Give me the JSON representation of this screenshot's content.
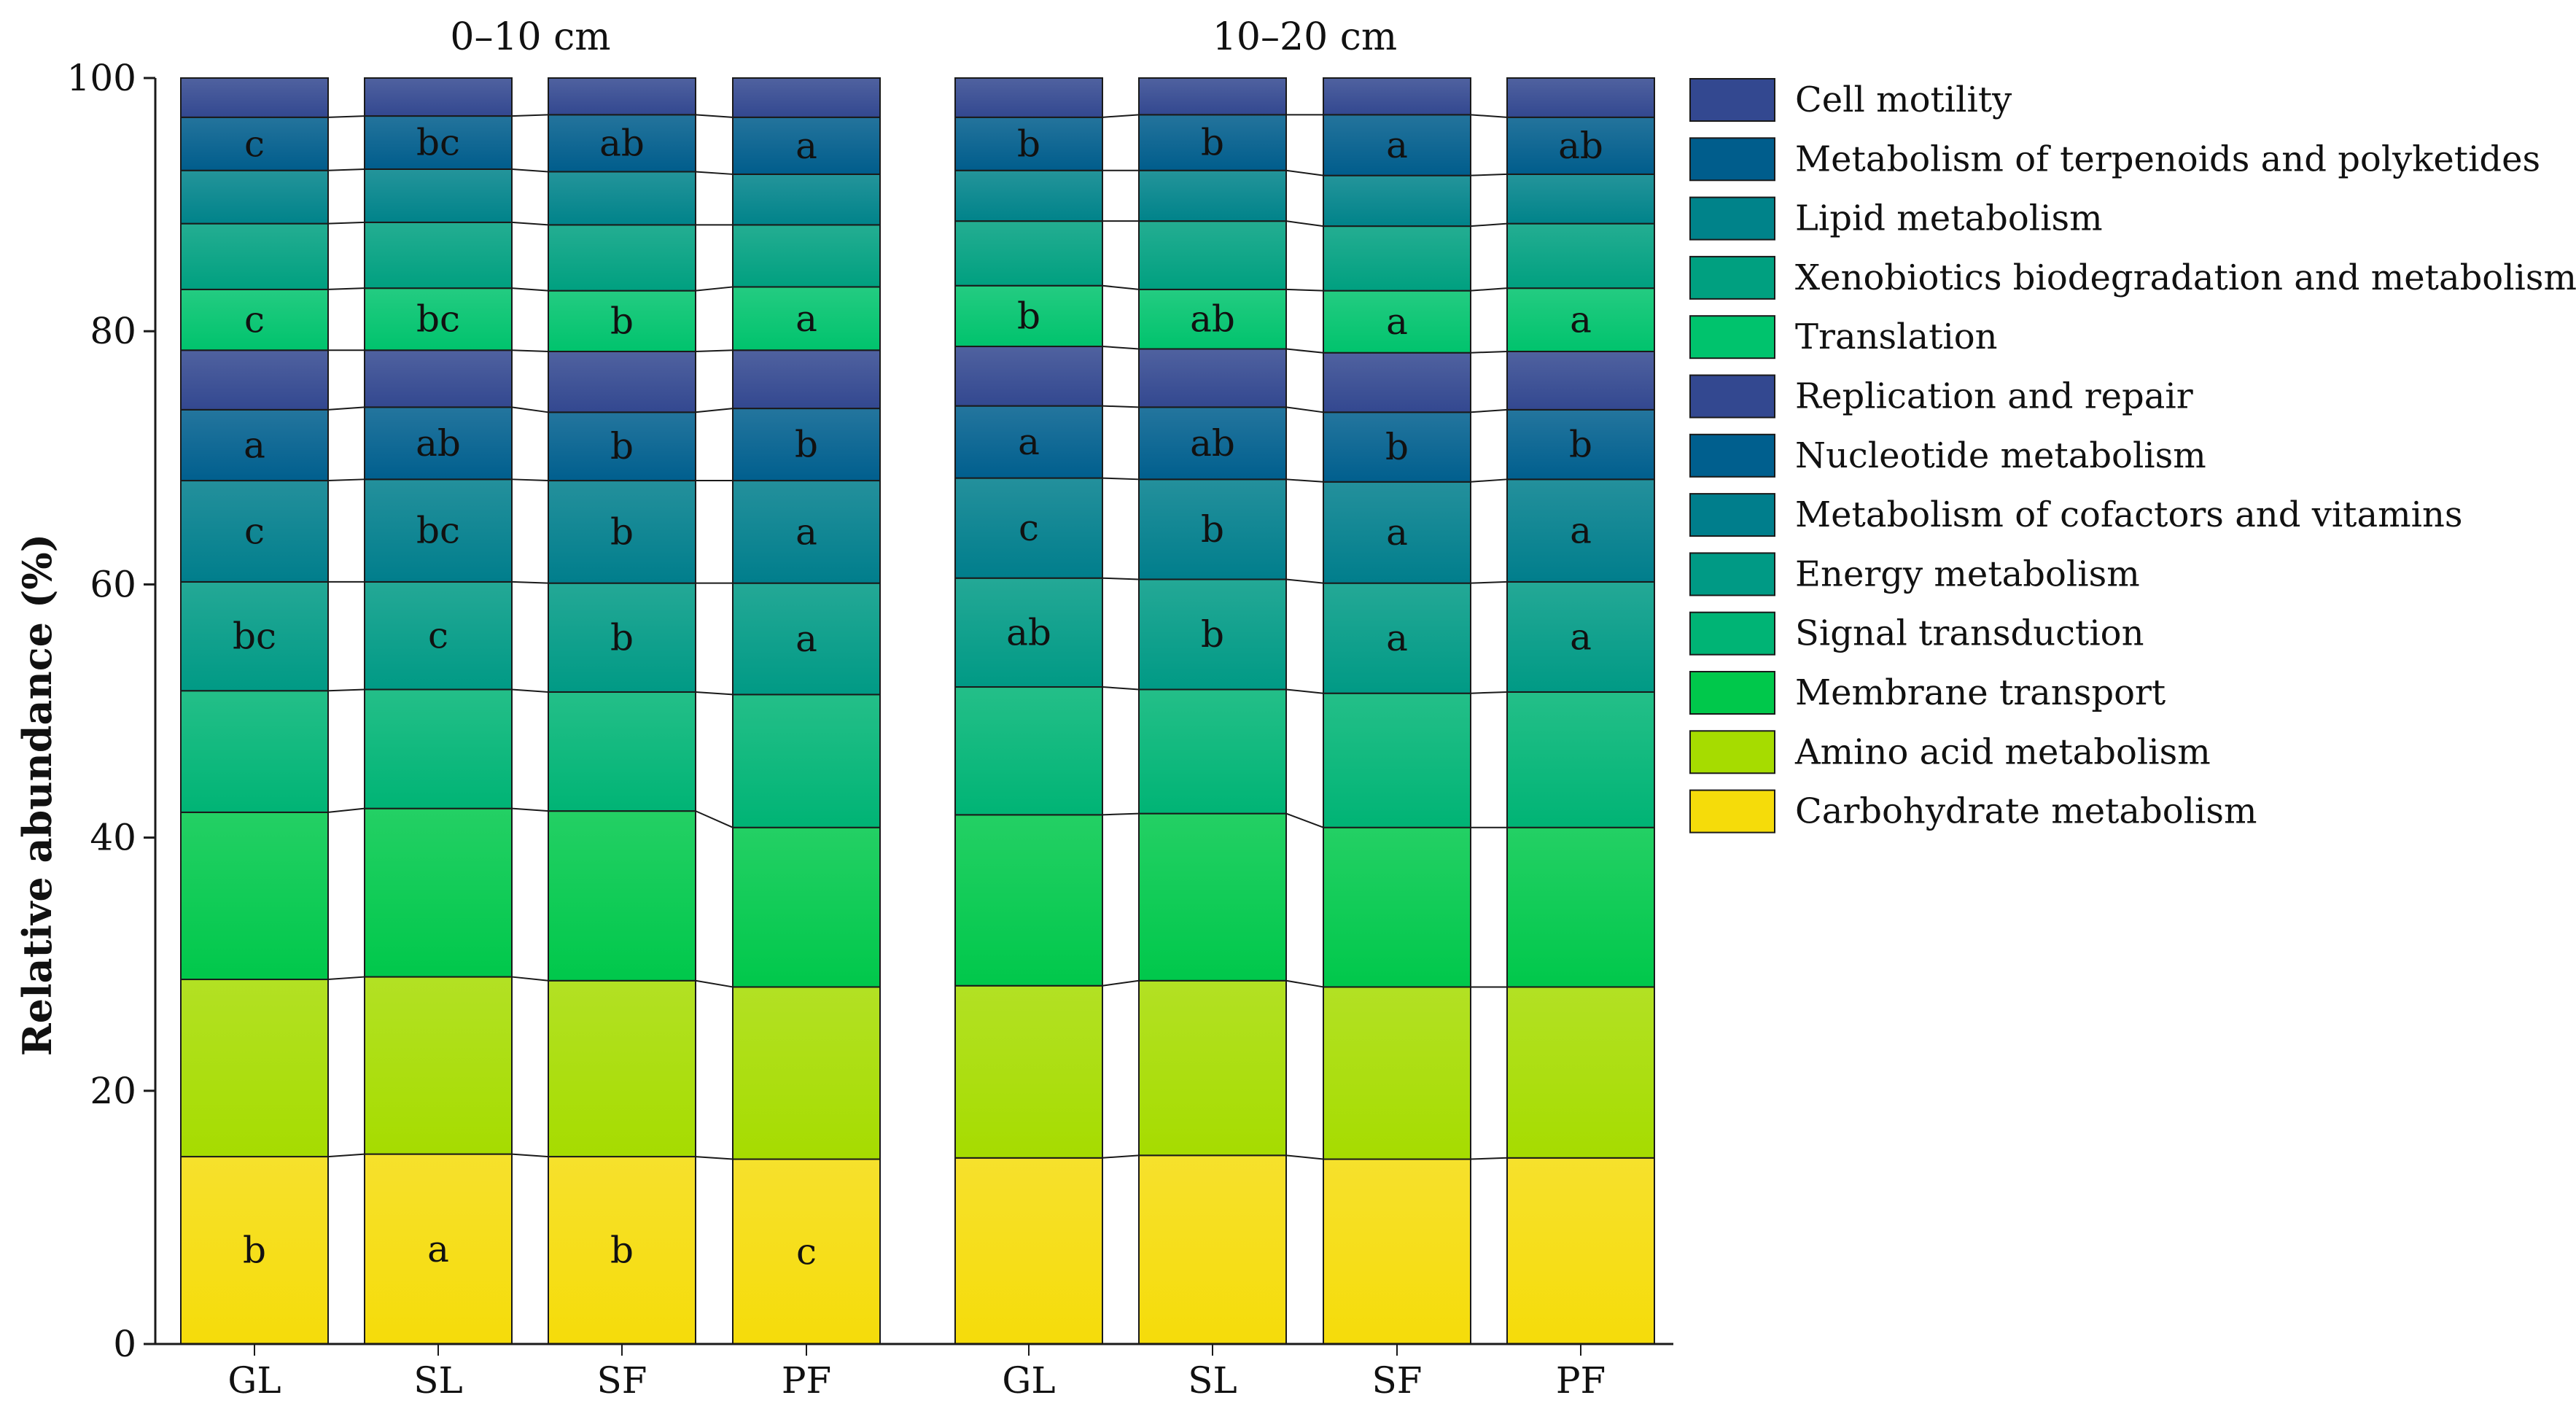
{
  "chart_data": {
    "type": "bar",
    "stacked": true,
    "percent": true,
    "ylabel": "Relative abundance (%)",
    "ylim": [
      0,
      100
    ],
    "yticks": [
      0,
      20,
      40,
      60,
      80,
      100
    ],
    "legend_position": "right",
    "categories": [
      "GL",
      "SL",
      "SF",
      "PF"
    ],
    "panels": [
      {
        "title": "0–10 cm",
        "cumulative": {
          "GL": [
            14.8,
            28.8,
            42.0,
            51.6,
            60.2,
            68.2,
            73.8,
            78.5,
            83.3,
            88.5,
            92.7,
            96.9,
            100
          ],
          "SL": [
            15.0,
            29.0,
            42.3,
            51.7,
            60.2,
            68.3,
            74.0,
            78.5,
            83.4,
            88.6,
            92.8,
            97.0,
            100
          ],
          "SF": [
            14.8,
            28.7,
            42.1,
            51.5,
            60.1,
            68.2,
            73.6,
            78.4,
            83.2,
            88.4,
            92.6,
            97.1,
            100
          ],
          "PF": [
            14.6,
            28.2,
            40.8,
            51.3,
            60.1,
            68.2,
            73.9,
            78.5,
            83.5,
            88.4,
            92.4,
            96.9,
            100
          ]
        },
        "letters": [
          {
            "series": "Carbohydrate metabolism",
            "values": [
              "b",
              "a",
              "b",
              "c"
            ]
          },
          {
            "series": "Energy metabolism",
            "values": [
              "bc",
              "c",
              "b",
              "a"
            ]
          },
          {
            "series": "Metabolism of cofactors and vitamins",
            "values": [
              "c",
              "bc",
              "b",
              "a"
            ]
          },
          {
            "series": "Nucleotide metabolism",
            "values": [
              "a",
              "ab",
              "b",
              "b"
            ]
          },
          {
            "series": "Translation",
            "values": [
              "c",
              "bc",
              "b",
              "a"
            ]
          },
          {
            "series": "Metabolism of terpenoids and polyketides",
            "values": [
              "c",
              "bc",
              "ab",
              "a"
            ]
          }
        ]
      },
      {
        "title": "10–20 cm",
        "cumulative": {
          "GL": [
            14.7,
            28.3,
            41.8,
            51.9,
            60.5,
            68.4,
            74.1,
            78.8,
            83.6,
            88.7,
            92.7,
            96.9,
            100
          ],
          "SL": [
            14.9,
            28.7,
            41.9,
            51.7,
            60.4,
            68.3,
            74.0,
            78.6,
            83.3,
            88.7,
            92.7,
            97.1,
            100
          ],
          "SF": [
            14.6,
            28.2,
            40.8,
            51.4,
            60.1,
            68.1,
            73.6,
            78.3,
            83.2,
            88.3,
            92.3,
            97.1,
            100
          ],
          "PF": [
            14.7,
            28.2,
            40.8,
            51.5,
            60.2,
            68.3,
            73.8,
            78.4,
            83.4,
            88.5,
            92.4,
            96.9,
            100
          ]
        },
        "letters": [
          {
            "series": "Energy metabolism",
            "values": [
              "ab",
              "b",
              "a",
              "a"
            ]
          },
          {
            "series": "Metabolism of cofactors and vitamins",
            "values": [
              "c",
              "b",
              "a",
              "a"
            ]
          },
          {
            "series": "Nucleotide metabolism",
            "values": [
              "a",
              "ab",
              "b",
              "b"
            ]
          },
          {
            "series": "Translation",
            "values": [
              "b",
              "ab",
              "a",
              "a"
            ]
          },
          {
            "series": "Metabolism of terpenoids and polyketides",
            "values": [
              "b",
              "b",
              "a",
              "ab"
            ]
          }
        ]
      }
    ],
    "series": [
      {
        "name": "Carbohydrate metabolism",
        "color": "#f5dc0a"
      },
      {
        "name": "Amino acid metabolism",
        "color": "#a6dc00"
      },
      {
        "name": "Membrane transport",
        "color": "#00c84b"
      },
      {
        "name": "Signal transduction",
        "color": "#00b475"
      },
      {
        "name": "Energy metabolism",
        "color": "#009a85"
      },
      {
        "name": "Metabolism of cofactors and vitamins",
        "color": "#007e8c"
      },
      {
        "name": "Nucleotide metabolism",
        "color": "#005f8e"
      },
      {
        "name": "Replication and repair",
        "color": "#334890"
      },
      {
        "name": "Translation",
        "color": "#00c36d"
      },
      {
        "name": "Xenobiotics biodegradation and metabolism",
        "color": "#00a080"
      },
      {
        "name": "Lipid metabolism",
        "color": "#00838a"
      },
      {
        "name": "Metabolism of terpenoids and polyketides",
        "color": "#005d8c"
      },
      {
        "name": "Cell motility",
        "color": "#334890"
      }
    ]
  }
}
